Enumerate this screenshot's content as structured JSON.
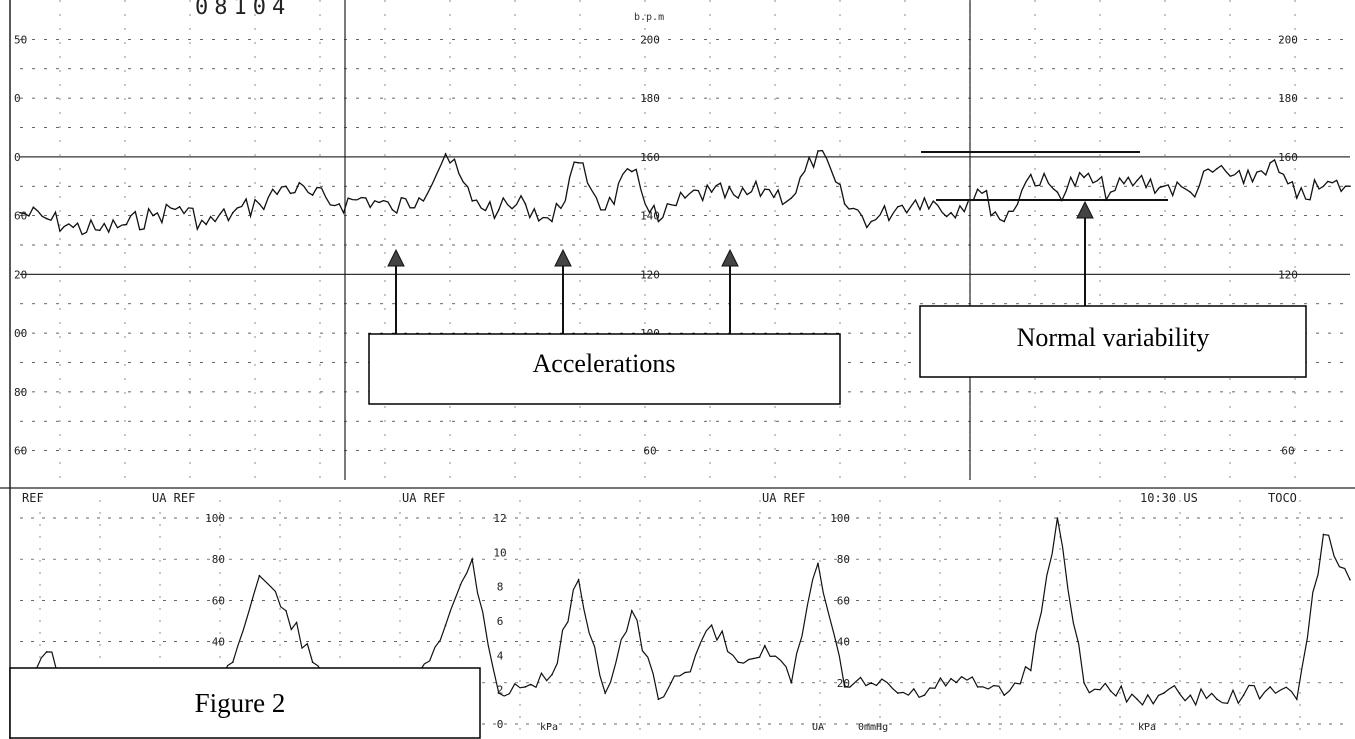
{
  "figure_caption": "Figure 2",
  "header_fragment": "08104",
  "callouts": {
    "accelerations": "Accelerations",
    "normal_variability": "Normal variability"
  },
  "colors": {
    "paper": "#ffffff",
    "ink": "#111111",
    "grid": "#333333",
    "label_box_border": "#000000"
  },
  "chart_data": [
    {
      "type": "line",
      "name": "fhr",
      "xlabel": "",
      "ylabel": "",
      "unit_label": "b.p.m",
      "ylim": [
        50,
        210
      ],
      "xlim": [
        0,
        100
      ],
      "grid": true,
      "tick_labels": [
        "200",
        "180",
        "160",
        "140",
        "120",
        "100",
        "80",
        "60"
      ],
      "left_edge_ticks": [
        "50",
        "0",
        "0",
        "60",
        "20",
        "00",
        "80",
        "60"
      ],
      "right_edge_ticks": [
        "200",
        "180",
        "160",
        "120",
        "60"
      ],
      "x": [
        0,
        2,
        4,
        6,
        8,
        10,
        12,
        14,
        16,
        18,
        20,
        22,
        24,
        26,
        28,
        30,
        32,
        34,
        36,
        38,
        40,
        42,
        44,
        46,
        48,
        50,
        52,
        54,
        56,
        58,
        60,
        62,
        64,
        66,
        68,
        70,
        72,
        74,
        76,
        78,
        80,
        82,
        84,
        86,
        88,
        90,
        92,
        94,
        96,
        98,
        100
      ],
      "values": [
        141,
        139,
        136,
        135,
        137,
        140,
        143,
        137,
        141,
        144,
        150,
        147,
        144,
        146,
        142,
        146,
        161,
        145,
        142,
        144,
        138,
        158,
        142,
        155,
        138,
        146,
        148,
        146,
        149,
        146,
        162,
        144,
        138,
        143,
        146,
        141,
        149,
        138,
        154,
        148,
        153,
        148,
        152,
        150,
        148,
        156,
        151,
        158,
        146,
        150,
        150
      ],
      "annotations": [
        {
          "label": "Accelerations",
          "points_at_x": [
            28,
            41,
            53
          ]
        },
        {
          "label": "Normal variability",
          "band": [
            143,
            152
          ],
          "x_range": [
            68,
            86
          ]
        }
      ]
    },
    {
      "type": "line",
      "name": "uterine activity",
      "xlabel": "",
      "ylabel": "",
      "ylim": [
        0,
        100
      ],
      "xlim": [
        0,
        100
      ],
      "grid": true,
      "header_labels": [
        "REF",
        "UA REF",
        "UA REF",
        "UA REF",
        "10:30 US",
        "TOCO"
      ],
      "tick_labels": [
        "100",
        "80",
        "60",
        "40",
        "20",
        "12",
        "10",
        "8",
        "6",
        "4",
        "2",
        "0"
      ],
      "unit_labels": [
        "kPa",
        "UA",
        "0mmHg",
        "kPa"
      ],
      "x": [
        0,
        2,
        4,
        6,
        8,
        10,
        12,
        14,
        16,
        18,
        20,
        22,
        24,
        26,
        28,
        30,
        32,
        34,
        36,
        38,
        40,
        42,
        44,
        46,
        48,
        50,
        52,
        54,
        56,
        58,
        60,
        62,
        64,
        66,
        68,
        70,
        72,
        74,
        76,
        78,
        80,
        82,
        84,
        86,
        88,
        90,
        92,
        94,
        96,
        98,
        100
      ],
      "values": [
        22,
        35,
        18,
        12,
        20,
        16,
        14,
        18,
        30,
        72,
        55,
        30,
        14,
        24,
        20,
        25,
        48,
        80,
        15,
        18,
        24,
        70,
        15,
        55,
        12,
        25,
        48,
        30,
        38,
        20,
        78,
        18,
        20,
        15,
        14,
        22,
        18,
        14,
        26,
        100,
        20,
        16,
        12,
        15,
        14,
        12,
        14,
        18,
        12,
        92,
        70
      ]
    }
  ]
}
